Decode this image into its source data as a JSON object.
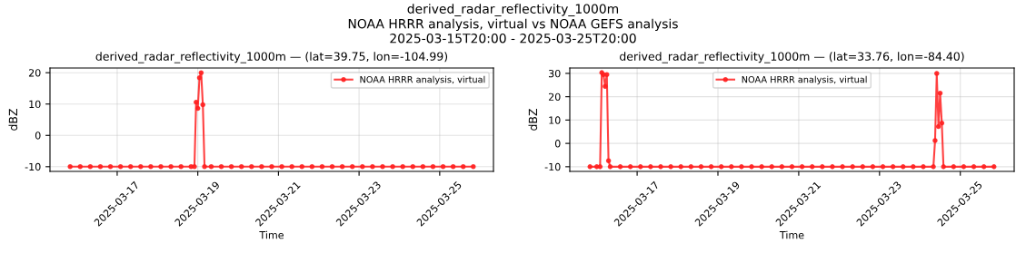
{
  "chart_data": [
    {
      "type": "other",
      "title": "derived_radar_reflectivity_1000m",
      "annotations": [
        "NOAA HRRR analysis, virtual vs NOAA GEFS analysis",
        "2025-03-15T20:00 - 2025-03-25T20:00"
      ]
    },
    {
      "type": "line",
      "title": "derived_radar_reflectivity_1000m — (lat=39.75, lon=-104.99)",
      "xlabel": "Time",
      "ylabel": "dBZ",
      "xlim": [
        "2025-03-15T08:00",
        "2025-03-26T08:00"
      ],
      "xticks": [
        "2025-03-17",
        "2025-03-19",
        "2025-03-21",
        "2025-03-23",
        "2025-03-25"
      ],
      "ylim": [
        -11.5,
        21.5
      ],
      "yticks": [
        -10,
        0,
        10,
        20
      ],
      "grid": true,
      "legend": "top right",
      "marker": "circle",
      "line_style": "solid",
      "series": [
        {
          "name": "NOAA HRRR analysis, virtual",
          "color": "#ff2020",
          "x": [
            "2025-03-15T20:00",
            "2025-03-16T02:00",
            "2025-03-16T08:00",
            "2025-03-16T14:00",
            "2025-03-16T20:00",
            "2025-03-17T02:00",
            "2025-03-17T08:00",
            "2025-03-17T14:00",
            "2025-03-17T20:00",
            "2025-03-18T02:00",
            "2025-03-18T08:00",
            "2025-03-18T14:00",
            "2025-03-18T20:00",
            "2025-03-18T22:00",
            "2025-03-18T23:00",
            "2025-03-19T00:00",
            "2025-03-19T01:00",
            "2025-03-19T02:00",
            "2025-03-19T03:00",
            "2025-03-19T04:00",
            "2025-03-19T08:00",
            "2025-03-19T14:00",
            "2025-03-19T20:00",
            "2025-03-20T02:00",
            "2025-03-20T08:00",
            "2025-03-20T14:00",
            "2025-03-20T20:00",
            "2025-03-21T02:00",
            "2025-03-21T08:00",
            "2025-03-21T14:00",
            "2025-03-21T20:00",
            "2025-03-22T02:00",
            "2025-03-22T08:00",
            "2025-03-22T14:00",
            "2025-03-22T20:00",
            "2025-03-23T02:00",
            "2025-03-23T08:00",
            "2025-03-23T14:00",
            "2025-03-23T20:00",
            "2025-03-24T02:00",
            "2025-03-24T08:00",
            "2025-03-24T14:00",
            "2025-03-24T20:00",
            "2025-03-25T02:00",
            "2025-03-25T08:00",
            "2025-03-25T14:00",
            "2025-03-25T20:00"
          ],
          "values": [
            -10,
            -10,
            -10,
            -10,
            -10,
            -10,
            -10,
            -10,
            -10,
            -10,
            -10,
            -10,
            -10,
            -10,
            10.6,
            8.6,
            18.4,
            20,
            9.8,
            -10,
            -10,
            -10,
            -10,
            -10,
            -10,
            -10,
            -10,
            -10,
            -10,
            -10,
            -10,
            -10,
            -10,
            -10,
            -10,
            -10,
            -10,
            -10,
            -10,
            -10,
            -10,
            -10,
            -10,
            -10,
            -10,
            -10,
            -10
          ]
        }
      ]
    },
    {
      "type": "line",
      "title": "derived_radar_reflectivity_1000m — (lat=33.76, lon=-84.40)",
      "xlabel": "Time",
      "ylabel": "dBZ",
      "xlim": [
        "2025-03-15T08:00",
        "2025-03-26T08:00"
      ],
      "xticks": [
        "2025-03-17",
        "2025-03-19",
        "2025-03-21",
        "2025-03-23",
        "2025-03-25"
      ],
      "ylim": [
        -12,
        32.3
      ],
      "yticks": [
        -10,
        0,
        10,
        20,
        30
      ],
      "grid": true,
      "legend": "top",
      "marker": "circle",
      "line_style": "solid",
      "series": [
        {
          "name": "NOAA HRRR analysis, virtual",
          "color": "#ff2020",
          "x": [
            "2025-03-15T20:00",
            "2025-03-16T00:00",
            "2025-03-16T02:00",
            "2025-03-16T03:00",
            "2025-03-16T04:00",
            "2025-03-16T05:00",
            "2025-03-16T06:00",
            "2025-03-16T07:00",
            "2025-03-16T08:00",
            "2025-03-16T14:00",
            "2025-03-16T20:00",
            "2025-03-17T02:00",
            "2025-03-17T08:00",
            "2025-03-17T14:00",
            "2025-03-17T20:00",
            "2025-03-18T02:00",
            "2025-03-18T08:00",
            "2025-03-18T14:00",
            "2025-03-18T20:00",
            "2025-03-19T02:00",
            "2025-03-19T08:00",
            "2025-03-19T14:00",
            "2025-03-19T20:00",
            "2025-03-20T02:00",
            "2025-03-20T08:00",
            "2025-03-20T14:00",
            "2025-03-20T20:00",
            "2025-03-21T02:00",
            "2025-03-21T08:00",
            "2025-03-21T14:00",
            "2025-03-21T20:00",
            "2025-03-22T02:00",
            "2025-03-22T08:00",
            "2025-03-22T14:00",
            "2025-03-22T20:00",
            "2025-03-23T02:00",
            "2025-03-23T08:00",
            "2025-03-23T14:00",
            "2025-03-23T20:00",
            "2025-03-24T02:00",
            "2025-03-24T08:00",
            "2025-03-24T09:00",
            "2025-03-24T10:00",
            "2025-03-24T11:00",
            "2025-03-24T12:00",
            "2025-03-24T13:00",
            "2025-03-24T14:00",
            "2025-03-24T20:00",
            "2025-03-25T02:00",
            "2025-03-25T08:00",
            "2025-03-25T14:00",
            "2025-03-25T20:00"
          ],
          "values": [
            -10,
            -10,
            -10,
            30.3,
            29.5,
            24.4,
            29.5,
            -7.4,
            -10,
            -10,
            -10,
            -10,
            -10,
            -10,
            -10,
            -10,
            -10,
            -10,
            -10,
            -10,
            -10,
            -10,
            -10,
            -10,
            -10,
            -10,
            -10,
            -10,
            -10,
            -10,
            -10,
            -10,
            -10,
            -10,
            -10,
            -10,
            -10,
            -10,
            -10,
            -10,
            -10,
            1.2,
            30,
            7.2,
            21.5,
            8.7,
            -10,
            -10,
            -10,
            -10,
            -10,
            -10
          ]
        }
      ]
    }
  ]
}
